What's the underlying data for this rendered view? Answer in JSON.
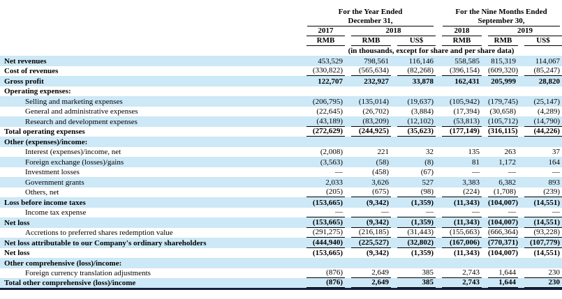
{
  "colors": {
    "stripe": "#cde8f6",
    "rule": "#000000",
    "bottom_bar": "#14213d"
  },
  "table": {
    "header": {
      "period_groups": [
        {
          "title_line1": "For the Year Ended",
          "title_line2": "December 31,"
        },
        {
          "title_line1": "For the Nine Months Ended",
          "title_line2": "September 30,"
        }
      ],
      "year_columns": [
        {
          "label": "2017",
          "span": 1
        },
        {
          "label": "2018",
          "span": 2
        },
        {
          "label": "2018",
          "span": 1
        },
        {
          "label": "2019",
          "span": 2
        }
      ],
      "currency_row": [
        "RMB",
        "RMB",
        "US$",
        "RMB",
        "RMB",
        "US$"
      ],
      "units_note": "(in thousands, except for share and per share data)"
    },
    "rows": [
      {
        "label": "Net revenues",
        "bold": true,
        "indent": false,
        "values_bold": false,
        "underline": false,
        "stripe": true,
        "values": [
          "453,529",
          "798,561",
          "116,146",
          "558,585",
          "815,319",
          "114,067"
        ]
      },
      {
        "label": "Cost of revenues",
        "bold": true,
        "indent": false,
        "values_bold": false,
        "underline": true,
        "stripe": false,
        "values": [
          "(330,822)",
          "(565,634)",
          "(82,268)",
          "(396,154)",
          "(609,320)",
          "(85,247)"
        ]
      },
      {
        "label": "Gross profit",
        "bold": true,
        "indent": false,
        "values_bold": true,
        "underline": false,
        "stripe": true,
        "values": [
          "122,707",
          "232,927",
          "33,878",
          "162,431",
          "205,999",
          "28,820"
        ]
      },
      {
        "label": "Operating expenses:",
        "bold": true,
        "indent": false,
        "values_bold": false,
        "underline": false,
        "stripe": false,
        "values": [
          "",
          "",
          "",
          "",
          "",
          ""
        ]
      },
      {
        "label": "Selling and marketing expenses",
        "bold": false,
        "indent": true,
        "values_bold": false,
        "underline": false,
        "stripe": true,
        "values": [
          "(206,795)",
          "(135,014)",
          "(19,637)",
          "(105,942)",
          "(179,745)",
          "(25,147)"
        ]
      },
      {
        "label": "General and administrative expenses",
        "bold": false,
        "indent": true,
        "values_bold": false,
        "underline": false,
        "stripe": false,
        "values": [
          "(22,645)",
          "(26,702)",
          "(3,884)",
          "(17,394)",
          "(30,658)",
          "(4,289)"
        ]
      },
      {
        "label": "Research and development expenses",
        "bold": false,
        "indent": true,
        "values_bold": false,
        "underline": true,
        "stripe": true,
        "values": [
          "(43,189)",
          "(83,209)",
          "(12,102)",
          "(53,813)",
          "(105,712)",
          "(14,790)"
        ]
      },
      {
        "label": "Total operating expenses",
        "bold": true,
        "indent": false,
        "values_bold": true,
        "underline": true,
        "stripe": false,
        "values": [
          "(272,629)",
          "(244,925)",
          "(35,623)",
          "(177,149)",
          "(316,115)",
          "(44,226)"
        ]
      },
      {
        "label": "Other (expenses)/income:",
        "bold": true,
        "indent": false,
        "values_bold": false,
        "underline": false,
        "stripe": true,
        "values": [
          "",
          "",
          "",
          "",
          "",
          ""
        ]
      },
      {
        "label": "Interest (expenses)/income, net",
        "bold": false,
        "indent": true,
        "values_bold": false,
        "underline": false,
        "stripe": false,
        "values": [
          "(2,008)",
          "221",
          "32",
          "135",
          "263",
          "37"
        ]
      },
      {
        "label": "Foreign exchange (losses)/gains",
        "bold": false,
        "indent": true,
        "values_bold": false,
        "underline": false,
        "stripe": true,
        "values": [
          "(3,563)",
          "(58)",
          "(8)",
          "81",
          "1,172",
          "164"
        ]
      },
      {
        "label": "Investment losses",
        "bold": false,
        "indent": true,
        "values_bold": false,
        "underline": false,
        "stripe": false,
        "values": [
          "—",
          "(458)",
          "(67)",
          "—",
          "—",
          "—"
        ]
      },
      {
        "label": "Government grants",
        "bold": false,
        "indent": true,
        "values_bold": false,
        "underline": false,
        "stripe": true,
        "values": [
          "2,033",
          "3,626",
          "527",
          "3,383",
          "6,382",
          "893"
        ]
      },
      {
        "label": "Others, net",
        "bold": false,
        "indent": true,
        "values_bold": false,
        "underline": true,
        "stripe": false,
        "values": [
          "(205)",
          "(675)",
          "(98)",
          "(224)",
          "(1,708)",
          "(239)"
        ]
      },
      {
        "label": "Loss before income taxes",
        "bold": true,
        "indent": false,
        "values_bold": true,
        "underline": false,
        "stripe": true,
        "values": [
          "(153,665)",
          "(9,342)",
          "(1,359)",
          "(11,343)",
          "(104,007)",
          "(14,551)"
        ]
      },
      {
        "label": "Income tax expense",
        "bold": false,
        "indent": true,
        "values_bold": false,
        "underline": true,
        "stripe": false,
        "values": [
          "—",
          "—",
          "—",
          "—",
          "—",
          "—"
        ]
      },
      {
        "label": "Net loss",
        "bold": true,
        "indent": false,
        "values_bold": true,
        "underline": true,
        "stripe": true,
        "values": [
          "(153,665)",
          "(9,342)",
          "(1,359)",
          "(11,343)",
          "(104,007)",
          "(14,551)"
        ]
      },
      {
        "label": "Accretions to preferred shares redemption value",
        "bold": false,
        "indent": true,
        "values_bold": false,
        "underline": true,
        "stripe": false,
        "values": [
          "(291,275)",
          "(216,185)",
          "(31,443)",
          "(155,663)",
          "(666,364)",
          "(93,228)"
        ]
      },
      {
        "label": "Net loss attributable to our Company's ordinary shareholders",
        "bold": true,
        "indent": false,
        "values_bold": true,
        "underline": true,
        "stripe": true,
        "values": [
          "(444,940)",
          "(225,527)",
          "(32,802)",
          "(167,006)",
          "(770,371)",
          "(107,779)"
        ]
      },
      {
        "label": "Net loss",
        "bold": true,
        "indent": false,
        "values_bold": true,
        "underline": false,
        "stripe": false,
        "values": [
          "(153,665)",
          "(9,342)",
          "(1,359)",
          "(11,343)",
          "(104,007)",
          "(14,551)"
        ]
      },
      {
        "label": "Other comprehensive (loss)/income:",
        "bold": true,
        "indent": false,
        "values_bold": false,
        "underline": false,
        "stripe": true,
        "values": [
          "",
          "",
          "",
          "",
          "",
          ""
        ]
      },
      {
        "label": "Foreign currency translation adjustments",
        "bold": false,
        "indent": true,
        "values_bold": false,
        "underline": true,
        "stripe": false,
        "values": [
          "(876)",
          "2,649",
          "385",
          "2,743",
          "1,644",
          "230"
        ]
      },
      {
        "label": "Total other comprehensive (loss)/income",
        "bold": true,
        "indent": false,
        "values_bold": true,
        "underline": true,
        "stripe": true,
        "values": [
          "(876)",
          "2,649",
          "385",
          "2,743",
          "1,644",
          "230"
        ]
      }
    ]
  }
}
